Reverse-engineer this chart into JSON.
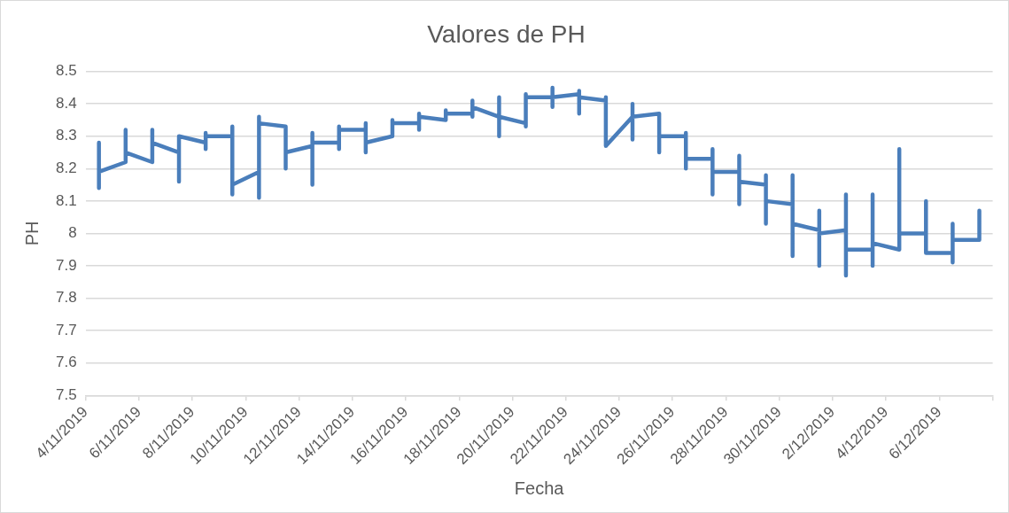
{
  "chart_data": {
    "type": "line",
    "title": "Valores de PH",
    "xlabel": "Fecha",
    "ylabel": "PH",
    "color": "#4a7ebb",
    "marker": "none",
    "line_style": "solid",
    "grid": "y",
    "legend": false,
    "x": [
      "2019-11-04T12:00",
      "2019-11-04T12:00",
      "2019-11-04T12:00",
      "2019-11-05T12:00",
      "2019-11-05T12:00",
      "2019-11-05T12:00",
      "2019-11-06T12:00",
      "2019-11-06T12:00",
      "2019-11-06T12:00",
      "2019-11-07T12:00",
      "2019-11-07T12:00",
      "2019-11-07T12:00",
      "2019-11-08T12:00",
      "2019-11-08T12:00",
      "2019-11-08T12:00",
      "2019-11-08T12:00",
      "2019-11-09T12:00",
      "2019-11-09T12:00",
      "2019-11-09T12:00",
      "2019-11-09T12:00",
      "2019-11-10T12:00",
      "2019-11-10T12:00",
      "2019-11-10T12:00",
      "2019-11-10T12:00",
      "2019-11-11T12:00",
      "2019-11-11T12:00",
      "2019-11-11T12:00",
      "2019-11-12T12:00",
      "2019-11-12T12:00",
      "2019-11-12T12:00",
      "2019-11-12T12:00",
      "2019-11-13T12:00",
      "2019-11-13T12:00",
      "2019-11-13T12:00",
      "2019-11-13T12:00",
      "2019-11-14T12:00",
      "2019-11-14T12:00",
      "2019-11-14T12:00",
      "2019-11-14T12:00",
      "2019-11-15T12:00",
      "2019-11-15T12:00",
      "2019-11-15T12:00",
      "2019-11-16T12:00",
      "2019-11-16T12:00",
      "2019-11-16T12:00",
      "2019-11-16T12:00",
      "2019-11-17T12:00",
      "2019-11-17T12:00",
      "2019-11-17T12:00",
      "2019-11-18T12:00",
      "2019-11-18T12:00",
      "2019-11-18T12:00",
      "2019-11-18T12:00",
      "2019-11-19T12:00",
      "2019-11-19T12:00",
      "2019-11-19T12:00",
      "2019-11-19T12:00",
      "2019-11-20T12:00",
      "2019-11-20T12:00",
      "2019-11-20T12:00",
      "2019-11-20T12:00",
      "2019-11-21T12:00",
      "2019-11-21T12:00",
      "2019-11-21T12:00",
      "2019-11-21T12:00",
      "2019-11-22T12:00",
      "2019-11-22T12:00",
      "2019-11-22T12:00",
      "2019-11-22T12:00",
      "2019-11-23T12:00",
      "2019-11-23T12:00",
      "2019-11-23T12:00",
      "2019-11-24T12:00",
      "2019-11-24T12:00",
      "2019-11-24T12:00",
      "2019-11-24T12:00",
      "2019-11-25T12:00",
      "2019-11-25T12:00",
      "2019-11-25T12:00",
      "2019-11-26T12:00",
      "2019-11-26T12:00",
      "2019-11-26T12:00",
      "2019-11-26T12:00",
      "2019-11-27T12:00",
      "2019-11-27T12:00",
      "2019-11-27T12:00",
      "2019-11-27T12:00",
      "2019-11-28T12:00",
      "2019-11-28T12:00",
      "2019-11-28T12:00",
      "2019-11-28T12:00",
      "2019-11-29T12:00",
      "2019-11-29T12:00",
      "2019-11-29T12:00",
      "2019-11-29T12:00",
      "2019-11-30T12:00",
      "2019-11-30T12:00",
      "2019-11-30T12:00",
      "2019-11-30T12:00",
      "2019-12-01T12:00",
      "2019-12-01T12:00",
      "2019-12-01T12:00",
      "2019-12-01T12:00",
      "2019-12-02T12:00",
      "2019-12-02T12:00",
      "2019-12-02T12:00",
      "2019-12-02T12:00",
      "2019-12-03T12:00",
      "2019-12-03T12:00",
      "2019-12-03T12:00",
      "2019-12-03T12:00",
      "2019-12-04T12:00",
      "2019-12-04T12:00",
      "2019-12-04T12:00",
      "2019-12-05T12:00",
      "2019-12-05T12:00",
      "2019-12-05T12:00",
      "2019-12-06T12:00",
      "2019-12-06T12:00",
      "2019-12-06T12:00",
      "2019-12-06T12:00",
      "2019-12-07T12:00",
      "2019-12-07T12:00"
    ],
    "values": [
      8.28,
      8.14,
      8.19,
      8.22,
      8.32,
      8.25,
      8.22,
      8.32,
      8.28,
      8.25,
      8.16,
      8.3,
      8.28,
      8.26,
      8.31,
      8.3,
      8.3,
      8.33,
      8.12,
      8.15,
      8.19,
      8.11,
      8.36,
      8.34,
      8.33,
      8.2,
      8.25,
      8.27,
      8.15,
      8.31,
      8.28,
      8.28,
      8.26,
      8.33,
      8.32,
      8.32,
      8.34,
      8.25,
      8.28,
      8.3,
      8.35,
      8.34,
      8.34,
      8.32,
      8.37,
      8.36,
      8.35,
      8.38,
      8.37,
      8.37,
      8.36,
      8.41,
      8.39,
      8.36,
      8.42,
      8.3,
      8.36,
      8.34,
      8.33,
      8.43,
      8.42,
      8.42,
      8.45,
      8.39,
      8.42,
      8.43,
      8.44,
      8.37,
      8.42,
      8.41,
      8.42,
      8.27,
      8.36,
      8.4,
      8.29,
      8.36,
      8.37,
      8.25,
      8.3,
      8.3,
      8.31,
      8.2,
      8.23,
      8.23,
      8.26,
      8.12,
      8.19,
      8.19,
      8.24,
      8.09,
      8.16,
      8.15,
      8.18,
      8.03,
      8.1,
      8.09,
      8.18,
      7.93,
      8.03,
      8.01,
      8.07,
      7.9,
      8.0,
      8.01,
      8.12,
      7.87,
      7.95,
      7.95,
      8.12,
      7.9,
      7.97,
      7.95,
      8.26,
      8.0,
      8.0,
      8.1,
      7.94,
      7.94,
      7.91,
      8.03,
      7.98,
      7.98,
      8.07
    ],
    "xlim": [
      "2019-11-04",
      "2019-12-08"
    ],
    "xticks": [
      {
        "value": "2019-11-04",
        "label": "4/11/2019"
      },
      {
        "value": "2019-11-06",
        "label": "6/11/2019"
      },
      {
        "value": "2019-11-08",
        "label": "8/11/2019"
      },
      {
        "value": "2019-11-10",
        "label": "10/11/2019"
      },
      {
        "value": "2019-11-12",
        "label": "12/11/2019"
      },
      {
        "value": "2019-11-14",
        "label": "14/11/2019"
      },
      {
        "value": "2019-11-16",
        "label": "16/11/2019"
      },
      {
        "value": "2019-11-18",
        "label": "18/11/2019"
      },
      {
        "value": "2019-11-20",
        "label": "20/11/2019"
      },
      {
        "value": "2019-11-22",
        "label": "22/11/2019"
      },
      {
        "value": "2019-11-24",
        "label": "24/11/2019"
      },
      {
        "value": "2019-11-26",
        "label": "26/11/2019"
      },
      {
        "value": "2019-11-28",
        "label": "28/11/2019"
      },
      {
        "value": "2019-11-30",
        "label": "30/11/2019"
      },
      {
        "value": "2019-12-02",
        "label": "2/12/2019"
      },
      {
        "value": "2019-12-04",
        "label": "4/12/2019"
      },
      {
        "value": "2019-12-06",
        "label": "6/12/2019"
      },
      {
        "value": "2019-12-08",
        "label": null
      }
    ],
    "ylim": [
      7.5,
      8.5
    ],
    "yticks": [
      7.5,
      7.6,
      7.7,
      7.8,
      7.9,
      8,
      8.1,
      8.2,
      8.3,
      8.4,
      8.5
    ]
  }
}
